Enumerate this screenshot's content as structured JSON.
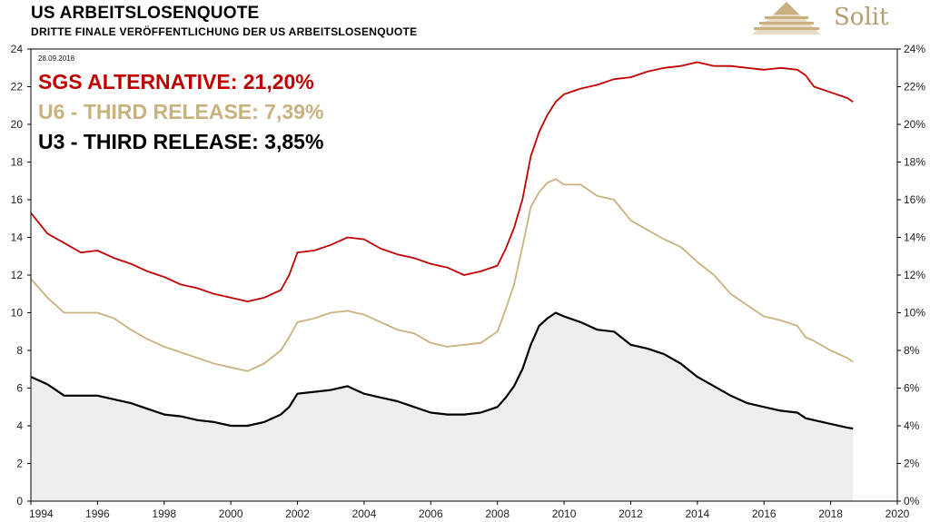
{
  "header": {
    "title": "US ARBEITSLOSENQUOTE",
    "subtitle": "DRITTE FINALE VERÖFFENTLICHUNG DER US ARBEITSLOSENQUOTE"
  },
  "brand": {
    "name": "Solit"
  },
  "colors": {
    "sgs": "#c00000",
    "u6": "#c8b27f",
    "u3": "#000000",
    "area": "#eeeeee"
  },
  "chart_data": {
    "type": "line",
    "title": "US ARBEITSLOSENQUOTE",
    "subtitle": "DRITTE FINALE VERÖFFENTLICHUNG DER US ARBEITSLOSENQUOTE",
    "date_label": "28.09.2018",
    "xlim": [
      1994,
      2020
    ],
    "ylim": [
      0,
      24
    ],
    "x_ticks": [
      "1994",
      "1996",
      "1998",
      "2000",
      "2002",
      "2004",
      "2006",
      "2008",
      "2010",
      "2012",
      "2014",
      "2016",
      "2018",
      "2020"
    ],
    "y_ticks_left": [
      "0",
      "2",
      "4",
      "6",
      "8",
      "10",
      "12",
      "14",
      "16",
      "18",
      "20",
      "22",
      "24"
    ],
    "y_ticks_right": [
      "0%",
      "2%",
      "4%",
      "6%",
      "8%",
      "10%",
      "12%",
      "14%",
      "16%",
      "18%",
      "20%",
      "22%",
      "24%"
    ],
    "grid": "none",
    "series": [
      {
        "name": "SGS ALTERNATIVE: 21,20%",
        "key": "sgs",
        "x": [
          1994.0,
          1994.5,
          1995.0,
          1995.5,
          1996.0,
          1996.5,
          1997.0,
          1997.5,
          1998.0,
          1998.5,
          1999.0,
          1999.5,
          2000.0,
          2000.5,
          2001.0,
          2001.5,
          2001.75,
          2002.0,
          2002.5,
          2003.0,
          2003.5,
          2004.0,
          2004.5,
          2005.0,
          2005.5,
          2006.0,
          2006.5,
          2007.0,
          2007.5,
          2008.0,
          2008.25,
          2008.5,
          2008.75,
          2009.0,
          2009.25,
          2009.5,
          2009.75,
          2010.0,
          2010.5,
          2011.0,
          2011.5,
          2012.0,
          2012.5,
          2013.0,
          2013.5,
          2014.0,
          2014.5,
          2015.0,
          2015.5,
          2016.0,
          2016.5,
          2017.0,
          2017.25,
          2017.5,
          2018.0,
          2018.5,
          2018.67
        ],
        "y": [
          15.3,
          14.2,
          13.7,
          13.2,
          13.3,
          12.9,
          12.6,
          12.2,
          11.9,
          11.5,
          11.3,
          11.0,
          10.8,
          10.6,
          10.8,
          11.2,
          12.0,
          13.2,
          13.3,
          13.6,
          14.0,
          13.9,
          13.4,
          13.1,
          12.9,
          12.6,
          12.4,
          12.0,
          12.2,
          12.5,
          13.4,
          14.5,
          16.0,
          18.3,
          19.6,
          20.5,
          21.2,
          21.6,
          21.9,
          22.1,
          22.4,
          22.5,
          22.8,
          23.0,
          23.1,
          23.3,
          23.1,
          23.1,
          23.0,
          22.9,
          23.0,
          22.9,
          22.6,
          22.0,
          21.7,
          21.4,
          21.2
        ]
      },
      {
        "name": "U6 - THIRD RELEASE: 7,39%",
        "key": "u6",
        "x": [
          1994.0,
          1994.5,
          1995.0,
          1995.5,
          1996.0,
          1996.5,
          1997.0,
          1997.5,
          1998.0,
          1998.5,
          1999.0,
          1999.5,
          2000.0,
          2000.5,
          2001.0,
          2001.5,
          2001.75,
          2002.0,
          2002.5,
          2003.0,
          2003.5,
          2004.0,
          2004.5,
          2005.0,
          2005.5,
          2006.0,
          2006.5,
          2007.0,
          2007.5,
          2008.0,
          2008.25,
          2008.5,
          2008.75,
          2009.0,
          2009.25,
          2009.5,
          2009.75,
          2010.0,
          2010.5,
          2011.0,
          2011.5,
          2012.0,
          2012.5,
          2013.0,
          2013.5,
          2014.0,
          2014.5,
          2015.0,
          2015.5,
          2016.0,
          2016.5,
          2017.0,
          2017.25,
          2017.5,
          2018.0,
          2018.5,
          2018.67
        ],
        "y": [
          11.8,
          10.8,
          10.0,
          10.0,
          10.0,
          9.7,
          9.1,
          8.6,
          8.2,
          7.9,
          7.6,
          7.3,
          7.1,
          6.9,
          7.3,
          8.0,
          8.7,
          9.5,
          9.7,
          10.0,
          10.1,
          9.9,
          9.5,
          9.1,
          8.9,
          8.4,
          8.2,
          8.3,
          8.4,
          9.0,
          10.2,
          11.5,
          13.5,
          15.6,
          16.4,
          16.9,
          17.1,
          16.8,
          16.8,
          16.2,
          16.0,
          14.9,
          14.4,
          13.9,
          13.5,
          12.7,
          12.0,
          11.0,
          10.4,
          9.8,
          9.6,
          9.3,
          8.7,
          8.5,
          8.0,
          7.6,
          7.39
        ]
      },
      {
        "name": "U3 - THIRD RELEASE: 3,85%",
        "key": "u3",
        "x": [
          1994.0,
          1994.5,
          1995.0,
          1995.5,
          1996.0,
          1996.5,
          1997.0,
          1997.5,
          1998.0,
          1998.5,
          1999.0,
          1999.5,
          2000.0,
          2000.5,
          2001.0,
          2001.5,
          2001.75,
          2002.0,
          2002.5,
          2003.0,
          2003.5,
          2004.0,
          2004.5,
          2005.0,
          2005.5,
          2006.0,
          2006.5,
          2007.0,
          2007.5,
          2008.0,
          2008.25,
          2008.5,
          2008.75,
          2009.0,
          2009.25,
          2009.5,
          2009.75,
          2010.0,
          2010.5,
          2011.0,
          2011.5,
          2012.0,
          2012.5,
          2013.0,
          2013.5,
          2014.0,
          2014.5,
          2015.0,
          2015.5,
          2016.0,
          2016.5,
          2017.0,
          2017.25,
          2017.5,
          2018.0,
          2018.5,
          2018.67
        ],
        "y": [
          6.6,
          6.2,
          5.6,
          5.6,
          5.6,
          5.4,
          5.2,
          4.9,
          4.6,
          4.5,
          4.3,
          4.2,
          4.0,
          4.0,
          4.2,
          4.6,
          5.0,
          5.7,
          5.8,
          5.9,
          6.1,
          5.7,
          5.5,
          5.3,
          5.0,
          4.7,
          4.6,
          4.6,
          4.7,
          5.0,
          5.5,
          6.1,
          7.0,
          8.3,
          9.3,
          9.7,
          10.0,
          9.8,
          9.5,
          9.1,
          9.0,
          8.3,
          8.1,
          7.8,
          7.3,
          6.6,
          6.1,
          5.6,
          5.2,
          5.0,
          4.8,
          4.7,
          4.4,
          4.3,
          4.1,
          3.9,
          3.85
        ]
      }
    ]
  }
}
